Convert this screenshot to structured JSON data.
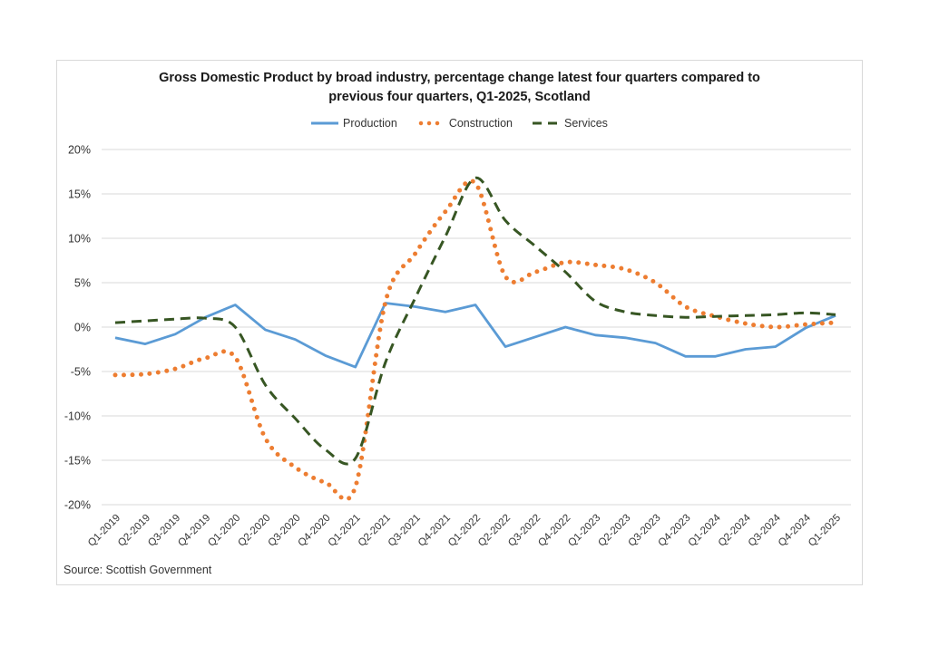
{
  "chart_data": {
    "type": "line",
    "title_lines": [
      "Gross Domestic Product by broad industry, percentage change latest four quarters compared to",
      "previous four quarters, Q1-2025, Scotland"
    ],
    "xlabel": "",
    "ylabel": "",
    "ylim": [
      -20,
      20
    ],
    "yticks": [
      20,
      15,
      10,
      5,
      0,
      -5,
      -10,
      -15,
      -20
    ],
    "ytick_labels": [
      "20%",
      "15%",
      "10%",
      "5%",
      "0%",
      "-5%",
      "-10%",
      "-15%",
      "-20%"
    ],
    "grid": true,
    "legend_position": "top-center",
    "categories": [
      "Q1-2019",
      "Q2-2019",
      "Q3-2019",
      "Q4-2019",
      "Q1-2020",
      "Q2-2020",
      "Q3-2020",
      "Q4-2020",
      "Q1-2021",
      "Q2-2021",
      "Q3-2021",
      "Q4-2021",
      "Q1-2022",
      "Q2-2022",
      "Q3-2022",
      "Q4-2022",
      "Q1-2023",
      "Q2-2023",
      "Q3-2023",
      "Q4-2023",
      "Q1-2024",
      "Q2-2024",
      "Q3-2024",
      "Q4-2024",
      "Q1-2025"
    ],
    "series": [
      {
        "name": "Production",
        "style": "solid",
        "color": "#5B9BD5",
        "values": [
          -1.2,
          -1.9,
          -0.8,
          1.1,
          2.5,
          -0.3,
          -1.4,
          -3.2,
          -4.5,
          2.7,
          2.3,
          1.7,
          2.5,
          -2.2,
          -1.1,
          0.0,
          -0.9,
          -1.2,
          -1.8,
          -3.3,
          -3.3,
          -2.5,
          -2.2,
          -0.1,
          1.3
        ]
      },
      {
        "name": "Construction",
        "style": "dotted",
        "color": "#ED7D31",
        "values": [
          -5.4,
          -5.3,
          -4.7,
          -3.5,
          -3.4,
          -12.5,
          -15.8,
          -17.5,
          -18.0,
          2.8,
          8.3,
          13.0,
          16.2,
          5.7,
          6.2,
          7.3,
          7.0,
          6.5,
          5.0,
          2.3,
          1.2,
          0.4,
          0.0,
          0.3,
          0.5
        ]
      },
      {
        "name": "Services",
        "style": "dashed",
        "color": "#375623",
        "values": [
          0.5,
          0.7,
          0.9,
          1.0,
          0.0,
          -6.5,
          -10.3,
          -13.8,
          -14.8,
          -4.0,
          3.3,
          10.2,
          16.8,
          12.0,
          9.1,
          6.2,
          2.9,
          1.7,
          1.3,
          1.1,
          1.2,
          1.3,
          1.4,
          1.6,
          1.4
        ]
      }
    ],
    "source": "Source: Scottish Government"
  }
}
